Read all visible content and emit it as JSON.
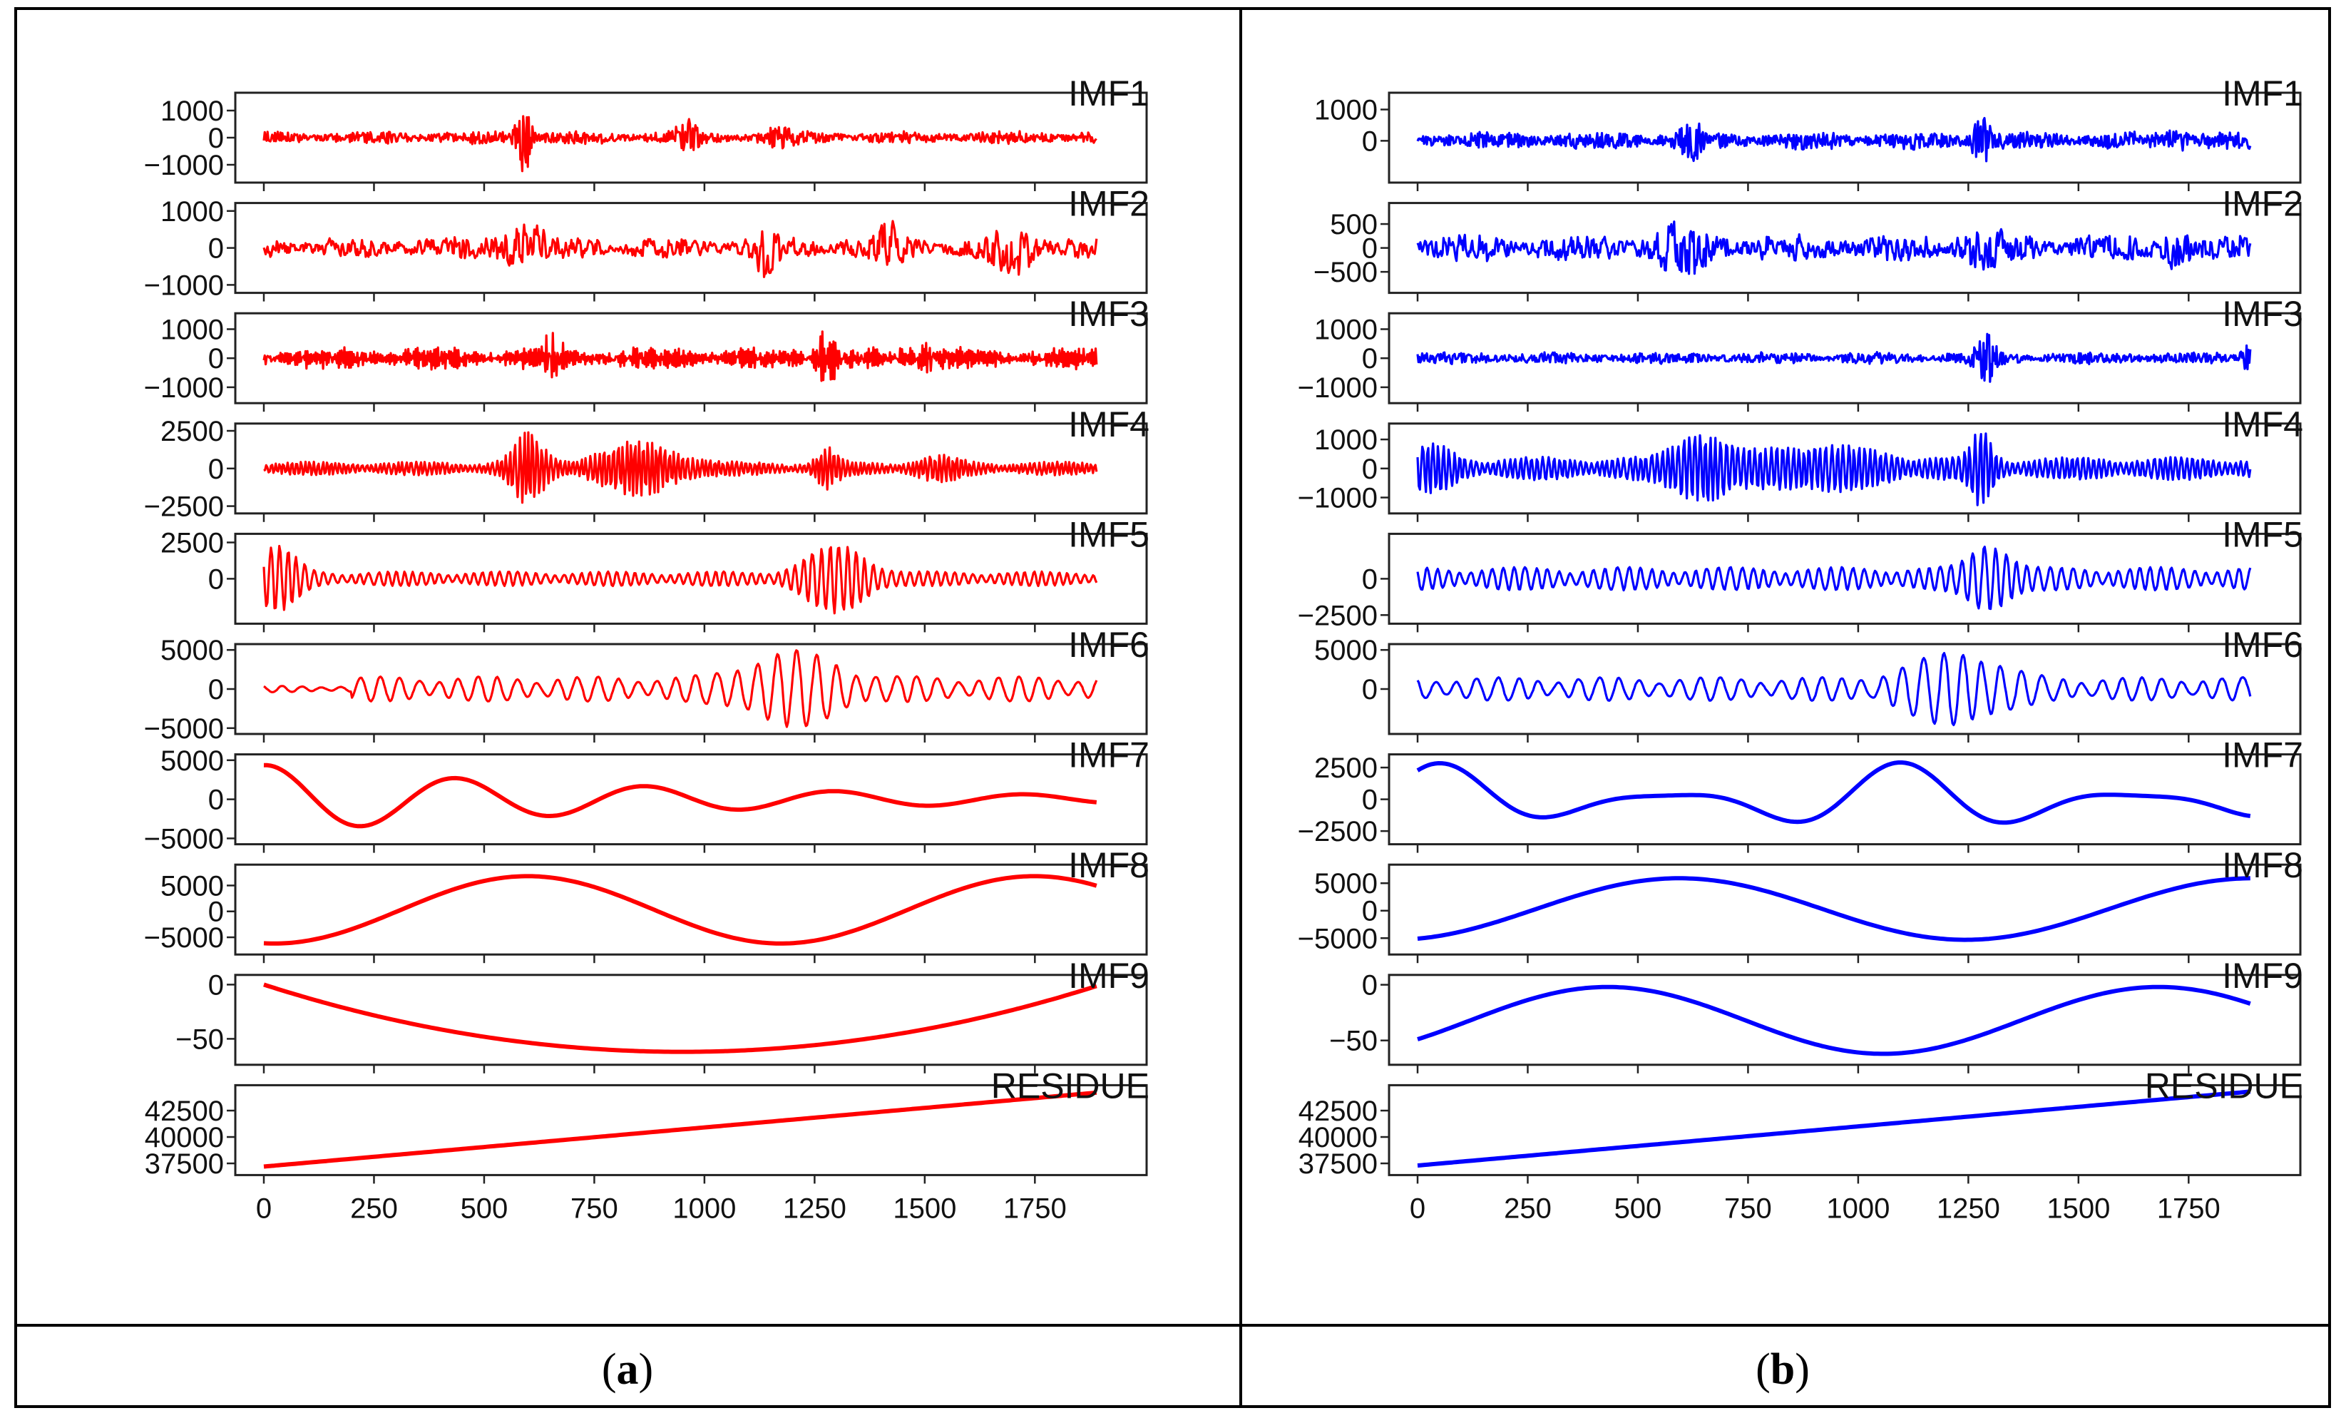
{
  "figure": {
    "caption_a": {
      "open": "(",
      "letter": "a",
      "close": ")"
    },
    "caption_b": {
      "open": "(",
      "letter": "b",
      "close": ")"
    }
  },
  "chart_data": [
    {
      "type": "line",
      "panel": "a",
      "series_color": "#ff0000",
      "x_range": [
        0,
        1900
      ],
      "x_ticks": [
        0,
        250,
        500,
        750,
        1000,
        1250,
        1500,
        1750
      ],
      "x_tick_labels": [
        "0",
        "250",
        "500",
        "750",
        "1000",
        "1250",
        "1500",
        "1750"
      ],
      "subplots": [
        {
          "title": "IMF1",
          "ylim": [
            -1500,
            1500
          ],
          "yticks": [
            1000,
            0,
            -1000
          ],
          "ytick_labels": [
            "1000",
            "0",
            "−1000"
          ],
          "signal": {
            "kind": "noise",
            "amp": 250,
            "freq": 0.9,
            "bursts": [
              [
                590,
                1400,
                12
              ],
              [
                960,
                500,
                20
              ],
              [
                1160,
                450,
                20
              ]
            ],
            "seed": 11
          }
        },
        {
          "title": "IMF2",
          "ylim": [
            -1100,
            1100
          ],
          "yticks": [
            1000,
            0,
            -1000
          ],
          "ytick_labels": [
            "1000",
            "0",
            "−1000"
          ],
          "signal": {
            "kind": "noise",
            "amp": 300,
            "freq": 0.45,
            "bursts": [
              [
                590,
                550,
                40
              ],
              [
                1140,
                650,
                18
              ],
              [
                1420,
                500,
                25
              ],
              [
                1700,
                650,
                35
              ]
            ],
            "seed": 21
          }
        },
        {
          "title": "IMF3",
          "ylim": [
            -1400,
            1400
          ],
          "yticks": [
            1000,
            0,
            -1000
          ],
          "ytick_labels": [
            "1000",
            "0",
            "−1000"
          ],
          "signal": {
            "kind": "noise",
            "amp": 420,
            "freq": 0.22,
            "bursts": [
              [
                650,
                700,
                18
              ],
              [
                1280,
                850,
                18
              ],
              [
                1500,
                400,
                30
              ]
            ],
            "seed": 31
          }
        },
        {
          "title": "IMF4",
          "ylim": [
            -2700,
            2700
          ],
          "yticks": [
            2500,
            0,
            -2500
          ],
          "ytick_labels": [
            "2500",
            "0",
            "−2500"
          ],
          "signal": {
            "kind": "wave",
            "amp": 450,
            "freq": 0.1,
            "bursts": [
              [
                600,
                2000,
                30
              ],
              [
                850,
                1400,
                80
              ],
              [
                1280,
                1000,
                20
              ],
              [
                1530,
                500,
                40
              ]
            ],
            "seed": 41
          }
        },
        {
          "title": "IMF5",
          "ylim": [
            -2800,
            2800
          ],
          "yticks": [
            2500,
            0
          ],
          "ytick_labels": [
            "2500",
            "0"
          ],
          "signal": {
            "kind": "wave",
            "amp": 500,
            "freq": 0.05,
            "bursts": [
              [
                30,
                1800,
                40
              ],
              [
                1300,
                1900,
                60
              ]
            ],
            "seed": 51
          }
        },
        {
          "title": "IMF6",
          "ylim": [
            -5200,
            5200
          ],
          "yticks": [
            5000,
            0,
            -5000
          ],
          "ytick_labels": [
            "5000",
            "0",
            "−5000"
          ],
          "signal": {
            "kind": "wave",
            "amp": 1600,
            "freq": 0.022,
            "bursts": [
              [
                1200,
                3400,
                90
              ]
            ],
            "onset": 200,
            "seed": 61
          }
        },
        {
          "title": "IMF7",
          "ylim": [
            -5200,
            5200
          ],
          "yticks": [
            5000,
            0,
            -5000
          ],
          "ytick_labels": [
            "5000",
            "0",
            "−5000"
          ],
          "signal": {
            "kind": "decay",
            "amp": 4400,
            "period": 430,
            "phase": 1.45,
            "tau": 900,
            "seed": 71
          }
        },
        {
          "title": "IMF8",
          "ylim": [
            -7500,
            8200
          ],
          "yticks": [
            5000,
            0,
            -5000
          ],
          "ytick_labels": [
            "5000",
            "0",
            "−5000"
          ],
          "signal": {
            "kind": "sine",
            "amp": 6500,
            "period": 1150,
            "phase": -1.7,
            "offset": 300,
            "seed": 81
          }
        },
        {
          "title": "IMF9",
          "ylim": [
            -70,
            5
          ],
          "yticks": [
            0,
            -50
          ],
          "ytick_labels": [
            "0",
            "−50"
          ],
          "signal": {
            "kind": "parabola",
            "top": 0,
            "bottom": -62,
            "vertex": 950,
            "seed": 91
          }
        },
        {
          "title": "RESIDUE",
          "ylim": [
            36800,
            44500
          ],
          "yticks": [
            42500,
            40000,
            37500
          ],
          "ytick_labels": [
            "42500",
            "40000",
            "37500"
          ],
          "signal": {
            "kind": "linear",
            "y0": 37200,
            "y1": 44200,
            "seed": 101
          }
        }
      ]
    },
    {
      "type": "line",
      "panel": "b",
      "series_color": "#0000ff",
      "x_range": [
        0,
        1900
      ],
      "x_ticks": [
        0,
        250,
        500,
        750,
        1000,
        1250,
        1500,
        1750
      ],
      "x_tick_labels": [
        "0",
        "250",
        "500",
        "750",
        "1000",
        "1250",
        "1500",
        "1750"
      ],
      "subplots": [
        {
          "title": "IMF1",
          "ylim": [
            -1200,
            1400
          ],
          "yticks": [
            1000,
            0
          ],
          "ytick_labels": [
            "1000",
            "0"
          ],
          "signal": {
            "kind": "noise",
            "amp": 300,
            "freq": 0.9,
            "bursts": [
              [
                620,
                700,
                15
              ],
              [
                1280,
                800,
                15
              ],
              [
                1720,
                500,
                15
              ]
            ],
            "seed": 12
          }
        },
        {
          "title": "IMF2",
          "ylim": [
            -850,
            850
          ],
          "yticks": [
            500,
            0,
            -500
          ],
          "ytick_labels": [
            "500",
            "0",
            "−500"
          ],
          "signal": {
            "kind": "noise",
            "amp": 300,
            "freq": 0.5,
            "bursts": [
              [
                610,
                400,
                40
              ],
              [
                1290,
                400,
                30
              ],
              [
                1720,
                300,
                20
              ]
            ],
            "seed": 22
          }
        },
        {
          "title": "IMF3",
          "ylim": [
            -1400,
            1400
          ],
          "yticks": [
            1000,
            0,
            -1000
          ],
          "ytick_labels": [
            "1000",
            "0",
            "−1000"
          ],
          "signal": {
            "kind": "noise",
            "amp": 220,
            "freq": 0.6,
            "bursts": [
              [
                1290,
                1000,
                15
              ],
              [
                1880,
                400,
                10
              ]
            ],
            "seed": 32
          }
        },
        {
          "title": "IMF4",
          "ylim": [
            -1400,
            1400
          ],
          "yticks": [
            1000,
            0,
            -1000
          ],
          "ytick_labels": [
            "1000",
            "0",
            "−1000"
          ],
          "signal": {
            "kind": "wave",
            "amp": 400,
            "freq": 0.08,
            "bursts": [
              [
                640,
                900,
                50
              ],
              [
                1280,
                1000,
                20
              ],
              [
                900,
                500,
                120
              ],
              [
                30,
                500,
                40
              ]
            ],
            "seed": 42
          }
        },
        {
          "title": "IMF5",
          "ylim": [
            -2800,
            2800
          ],
          "yticks": [
            0,
            -2500
          ],
          "ytick_labels": [
            "0",
            "−2500"
          ],
          "signal": {
            "kind": "wave",
            "amp": 800,
            "freq": 0.04,
            "bursts": [
              [
                1300,
                1800,
                40
              ]
            ],
            "seed": 52
          }
        },
        {
          "title": "IMF6",
          "ylim": [
            -5200,
            5200
          ],
          "yticks": [
            5000,
            0
          ],
          "ytick_labels": [
            "5000",
            "0"
          ],
          "signal": {
            "kind": "wave",
            "amp": 1500,
            "freq": 0.022,
            "bursts": [
              [
                1220,
                3400,
                90
              ]
            ],
            "seed": 62
          }
        },
        {
          "title": "IMF7",
          "ylim": [
            -3200,
            3200
          ],
          "yticks": [
            2500,
            0,
            -2500
          ],
          "ytick_labels": [
            "2500",
            "0",
            "−2500"
          ],
          "signal": {
            "kind": "sine",
            "amp": 2900,
            "period": 520,
            "phase": 0.9,
            "offset": 0,
            "mod": true,
            "seed": 72
          }
        },
        {
          "title": "IMF8",
          "ylim": [
            -7200,
            7600
          ],
          "yticks": [
            5000,
            0,
            -5000
          ],
          "ytick_labels": [
            "5000",
            "0",
            "−5000"
          ],
          "signal": {
            "kind": "sine",
            "amp": 5600,
            "period": 1300,
            "phase": -1.3,
            "offset": 300,
            "seed": 82
          }
        },
        {
          "title": "IMF9",
          "ylim": [
            -68,
            5
          ],
          "yticks": [
            0,
            -50
          ],
          "ytick_labels": [
            "0",
            "−50"
          ],
          "signal": {
            "kind": "sine",
            "amp": 30,
            "period": 1250,
            "phase": -0.6,
            "offset": -32,
            "seed": 92
          }
        },
        {
          "title": "RESIDUE",
          "ylim": [
            36800,
            44500
          ],
          "yticks": [
            42500,
            40000,
            37500
          ],
          "ytick_labels": [
            "42500",
            "40000",
            "37500"
          ],
          "signal": {
            "kind": "linear",
            "y0": 37300,
            "y1": 44300,
            "seed": 102
          }
        }
      ]
    }
  ]
}
